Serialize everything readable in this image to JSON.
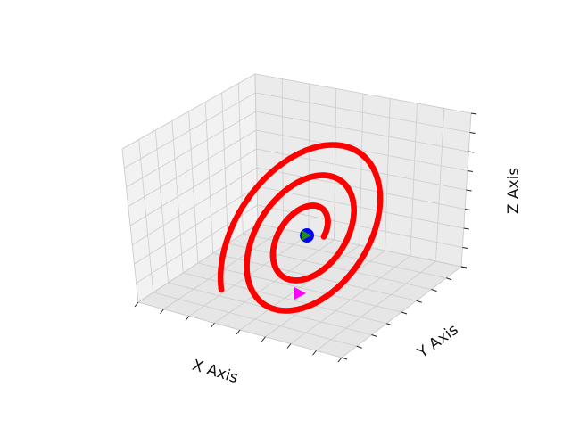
{
  "chart_data": {
    "type": "scatter",
    "projection": "3d",
    "title": "",
    "xlabel": "X Axis",
    "ylabel": "Y Axis",
    "zlabel": "Z Axis",
    "xlim": [
      -1,
      1
    ],
    "ylim": [
      -1,
      1
    ],
    "zlim": [
      -1,
      1
    ],
    "grid": true,
    "tick_labels_shown": false,
    "series": [
      {
        "kind": "trajectory",
        "color": "#ff0000",
        "marker": "dot",
        "parametric": {
          "form": "decaying inclined ellipse",
          "turns": 2.6,
          "radius_start": 0.56,
          "radius_end": 0.12
        }
      },
      {
        "kind": "central-body",
        "color": "#0000ff",
        "marker": "circle",
        "x": 0,
        "y": 0,
        "z": 0
      },
      {
        "kind": "current-position",
        "color": "#228b22",
        "marker": "triangle-right",
        "x": 0,
        "y": 0,
        "z": 0
      },
      {
        "kind": "start-position",
        "color": "#ff00ff",
        "marker": "triangle-right",
        "x": 0.36,
        "y": -0.48,
        "z": -0.52
      }
    ]
  }
}
